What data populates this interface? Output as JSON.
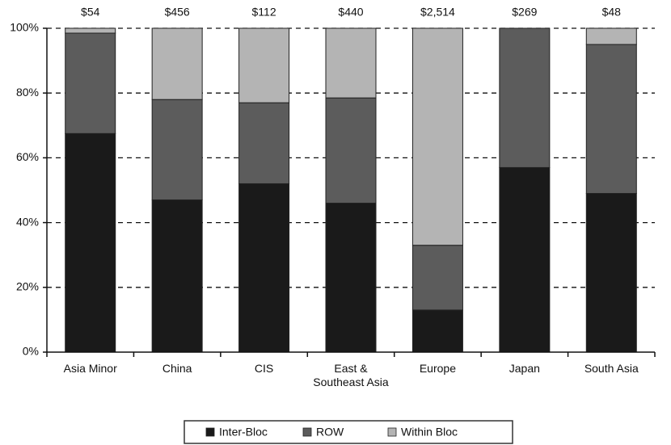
{
  "chart_data": {
    "type": "stacked_bar",
    "categories": [
      "Asia Minor",
      "China",
      "CIS",
      "East & Southeast Asia",
      "Europe",
      "Japan",
      "South Asia"
    ],
    "top_labels": [
      "$54",
      "$456",
      "$112",
      "$440",
      "$2,514",
      "$269",
      "$48"
    ],
    "series": [
      {
        "name": "Inter-Bloc",
        "color": "#1a1a1a",
        "values": [
          67.5,
          47,
          52,
          46,
          13,
          57,
          49
        ]
      },
      {
        "name": "ROW",
        "color": "#5c5c5c",
        "values": [
          31,
          31,
          25,
          32.5,
          20,
          43,
          46
        ]
      },
      {
        "name": "Within Bloc",
        "color": "#b4b4b4",
        "values": [
          1.5,
          22,
          23,
          21.5,
          67,
          0,
          5
        ]
      }
    ],
    "ylim": [
      0,
      100
    ],
    "yticks": [
      {
        "value": 0,
        "label": "0%"
      },
      {
        "value": 20,
        "label": "20%"
      },
      {
        "value": 40,
        "label": "40%"
      },
      {
        "value": 60,
        "label": "60%"
      },
      {
        "value": 80,
        "label": "80%"
      },
      {
        "value": 100,
        "label": "100%"
      }
    ],
    "grid": true,
    "legend": "bottom"
  }
}
